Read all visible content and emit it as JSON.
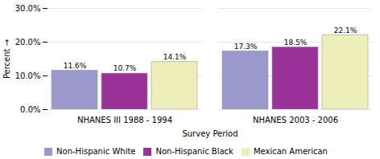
{
  "chart_data": {
    "type": "bar",
    "categories": [
      "NHANES III 1988 - 1994",
      "NHANES 2003 - 2006"
    ],
    "series": [
      {
        "name": "Non-Hispanic White",
        "color": "#9999CC",
        "values": [
          11.6,
          17.3
        ],
        "value_labels": [
          "11.6%",
          "17.3%"
        ]
      },
      {
        "name": "Non-Hispanic Black",
        "color": "#993399",
        "values": [
          10.7,
          18.5
        ],
        "value_labels": [
          "10.7%",
          "18.5%"
        ]
      },
      {
        "name": "Mexican American",
        "color": "#EEEEBB",
        "values": [
          14.1,
          22.1
        ],
        "value_labels": [
          "14.1%",
          "22.1%"
        ]
      }
    ],
    "xlabel": "Survey Period",
    "ylabel": "Percent",
    "ylim": [
      0,
      30
    ],
    "yticks": [
      {
        "value": 0,
        "label": "0.0%"
      },
      {
        "value": 10,
        "label": "10.0%"
      },
      {
        "value": 20,
        "label": "20.0%"
      },
      {
        "value": 30,
        "label": "30.0%"
      }
    ],
    "grid": true,
    "legend": "bottom",
    "data_labels": true
  }
}
